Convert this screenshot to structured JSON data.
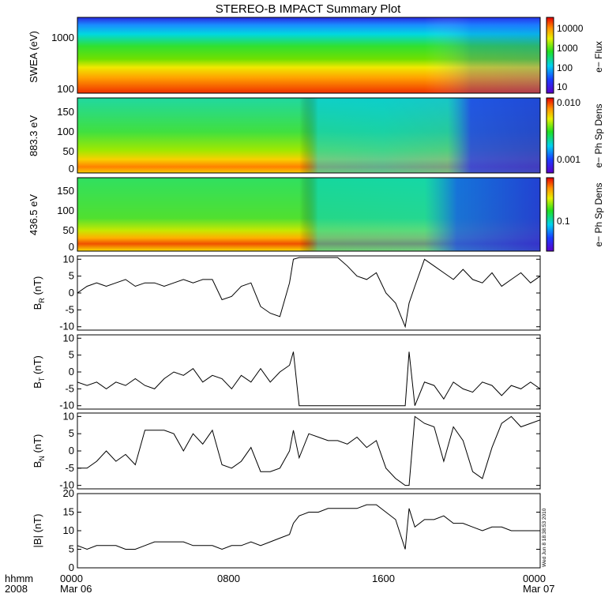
{
  "title": "STEREO-B IMPACT Summary Plot",
  "footer": {
    "row1_label": "hhmm",
    "row2_label": "2008",
    "ticks": [
      "0000",
      "0800",
      "1600",
      "0000"
    ],
    "date_start": "Mar 06",
    "date_end": "Mar 07"
  },
  "timestamp": "Wed Jun 8 18:38:53 2010",
  "chart_data": [
    {
      "type": "heatmap",
      "ylabel": "SWEA (eV)",
      "ylabels": [
        "1000",
        "100"
      ],
      "colorbar_label": "e− Flux",
      "colorbar_ticks": [
        "10000",
        "1000",
        "100",
        "10"
      ]
    },
    {
      "type": "heatmap",
      "ylabel": "883.3 eV",
      "ylabels": [
        "150",
        "100",
        "50",
        "0"
      ],
      "colorbar_label": "e− Ph Sp Dens",
      "colorbar_ticks": [
        "0.010",
        "0.001"
      ]
    },
    {
      "type": "heatmap",
      "ylabel": "436.5 eV",
      "ylabels": [
        "150",
        "100",
        "50",
        "0"
      ],
      "colorbar_label": "e− Ph Sp Dens",
      "colorbar_ticks": [
        "0.1"
      ]
    },
    {
      "type": "line",
      "ylabel_main": "B",
      "ylabel_sub": "R",
      "ylabel_unit": " (nT)",
      "ylim": [
        -11,
        11
      ],
      "yticks": [
        10,
        5,
        0,
        -5,
        -10
      ],
      "x": [
        0,
        0.5,
        1,
        1.5,
        2,
        2.5,
        3,
        3.5,
        4,
        4.5,
        5,
        5.5,
        6,
        6.5,
        7,
        7.5,
        8,
        8.5,
        9,
        9.5,
        10,
        10.5,
        11,
        11.2,
        11.5,
        12,
        12.5,
        13,
        13.5,
        14,
        14.5,
        15,
        15.5,
        16,
        16.5,
        17,
        17.2,
        17.5,
        18,
        18.5,
        19,
        19.5,
        20,
        20.5,
        21,
        21.5,
        22,
        22.5,
        23,
        23.5,
        24
      ],
      "y": [
        0,
        2,
        3,
        2,
        3,
        4,
        2,
        3,
        3,
        2,
        3,
        4,
        3,
        4,
        4,
        -2,
        -1,
        2,
        3,
        -4,
        -6,
        -7,
        3,
        10,
        10.5,
        10.5,
        10.5,
        10.5,
        10.5,
        8,
        5,
        4,
        6,
        0,
        -3,
        -10,
        -3,
        2,
        10,
        8,
        6,
        4,
        7,
        4,
        3,
        6,
        2,
        4,
        6,
        3,
        5
      ]
    },
    {
      "type": "line",
      "ylabel_main": "B",
      "ylabel_sub": "T",
      "ylabel_unit": " (nT)",
      "ylim": [
        -11,
        11
      ],
      "yticks": [
        10,
        5,
        0,
        -5,
        -10
      ],
      "x": [
        0,
        0.5,
        1,
        1.5,
        2,
        2.5,
        3,
        3.5,
        4,
        4.5,
        5,
        5.5,
        6,
        6.5,
        7,
        7.5,
        8,
        8.5,
        9,
        9.5,
        10,
        10.5,
        11,
        11.2,
        11.5,
        12,
        12.5,
        13,
        13.5,
        14,
        14.5,
        15,
        15.5,
        16,
        16.5,
        17,
        17.2,
        17.5,
        18,
        18.5,
        19,
        19.5,
        20,
        20.5,
        21,
        21.5,
        22,
        22.5,
        23,
        23.5,
        24
      ],
      "y": [
        -3,
        -4,
        -3,
        -5,
        -3,
        -4,
        -2,
        -4,
        -5,
        -2,
        0,
        -1,
        1,
        -3,
        -1,
        -2,
        -5,
        -1,
        -3,
        1,
        -3,
        0,
        2,
        6,
        -10,
        -10,
        -10,
        -10,
        -10,
        -10,
        -10,
        -10,
        -10,
        -10,
        -10,
        -10,
        6,
        -10,
        -3,
        -4,
        -8,
        -3,
        -5,
        -6,
        -3,
        -4,
        -7,
        -4,
        -5,
        -3,
        -5
      ]
    },
    {
      "type": "line",
      "ylabel_main": "B",
      "ylabel_sub": "N",
      "ylabel_unit": " (nT)",
      "ylim": [
        -11,
        11
      ],
      "yticks": [
        10,
        5,
        0,
        -5,
        -10
      ],
      "x": [
        0,
        0.5,
        1,
        1.5,
        2,
        2.5,
        3,
        3.5,
        4,
        4.5,
        5,
        5.5,
        6,
        6.5,
        7,
        7.5,
        8,
        8.5,
        9,
        9.5,
        10,
        10.5,
        11,
        11.2,
        11.5,
        12,
        12.5,
        13,
        13.5,
        14,
        14.5,
        15,
        15.5,
        16,
        16.5,
        17,
        17.2,
        17.5,
        18,
        18.5,
        19,
        19.5,
        20,
        20.5,
        21,
        21.5,
        22,
        22.5,
        23,
        23.5,
        24
      ],
      "y": [
        -5,
        -5,
        -3,
        0,
        -3,
        -1,
        -4,
        6,
        6,
        6,
        5,
        0,
        5,
        2,
        6,
        -4,
        -5,
        -3,
        1,
        -6,
        -6,
        -5,
        0,
        6,
        -2,
        5,
        4,
        3,
        3,
        2,
        4,
        1,
        3,
        -5,
        -8,
        -10,
        -10,
        10,
        8,
        7,
        -3,
        7,
        3,
        -6,
        -8,
        1,
        8,
        10,
        7,
        8,
        9
      ]
    },
    {
      "type": "line",
      "ylabel_main": "|B|",
      "ylabel_sub": "",
      "ylabel_unit": " (nT)",
      "ylim": [
        0,
        20
      ],
      "yticks": [
        20,
        15,
        10,
        5,
        0
      ],
      "x": [
        0,
        0.5,
        1,
        1.5,
        2,
        2.5,
        3,
        3.5,
        4,
        4.5,
        5,
        5.5,
        6,
        6.5,
        7,
        7.5,
        8,
        8.5,
        9,
        9.5,
        10,
        10.5,
        11,
        11.2,
        11.5,
        12,
        12.5,
        13,
        13.5,
        14,
        14.5,
        15,
        15.5,
        16,
        16.5,
        17,
        17.2,
        17.5,
        18,
        18.5,
        19,
        19.5,
        20,
        20.5,
        21,
        21.5,
        22,
        22.5,
        23,
        23.5,
        24
      ],
      "y": [
        6,
        5,
        6,
        6,
        6,
        5,
        5,
        6,
        7,
        7,
        7,
        7,
        6,
        6,
        6,
        5,
        6,
        6,
        7,
        6,
        7,
        8,
        9,
        12,
        14,
        15,
        15,
        16,
        16,
        16,
        16,
        17,
        17,
        15,
        13,
        5,
        16,
        11,
        13,
        13,
        14,
        12,
        12,
        11,
        10,
        11,
        11,
        10,
        10,
        10,
        10
      ]
    }
  ]
}
